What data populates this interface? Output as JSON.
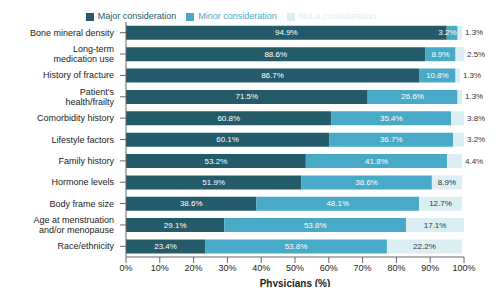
{
  "chart_data": {
    "type": "bar",
    "orientation": "horizontal",
    "stacked": true,
    "data_labels": true,
    "grid": false,
    "legend": "top",
    "xlabel": "Physicians (%)",
    "categories": [
      "Bone mineral density",
      "Long-term medication use",
      "History of fracture",
      "Patient's health/frailty",
      "Comorbidity history",
      "Lifestyle factors",
      "Family history",
      "Hormone levels",
      "Body frame size",
      "Age at menstruation and/or menopause",
      "Race/ethnicity"
    ],
    "series": [
      {
        "name": "Major consideration",
        "color": "#245b6b",
        "values": [
          94.9,
          88.6,
          86.7,
          71.5,
          60.8,
          60.1,
          53.2,
          51.9,
          38.6,
          29.1,
          23.4
        ],
        "value_labels": [
          "94.9%",
          "88.6%",
          "86.7%",
          "71.5%",
          "60.8%",
          "60.1%",
          "53.2%",
          "51.9%",
          "38.6%",
          "29.1%",
          "23.4%"
        ]
      },
      {
        "name": "Minor consideration",
        "color": "#48aac6",
        "values": [
          3.2,
          8.9,
          10.8,
          26.6,
          35.4,
          36.7,
          41.8,
          38.6,
          48.1,
          53.8,
          53.8
        ],
        "value_labels": [
          "3.2%",
          "8.9%",
          "10.8%",
          "26.6%",
          "35.4%",
          "36.7%",
          "41.8%",
          "38.6%",
          "48.1%",
          "53.8%",
          "53.8%"
        ]
      },
      {
        "name": "Not a consideration",
        "color": "#dbeef4",
        "values": [
          1.3,
          2.5,
          1.3,
          1.3,
          3.8,
          3.2,
          4.4,
          8.9,
          12.7,
          17.1,
          22.2
        ],
        "value_labels": [
          "1.3%",
          "2.5%",
          "1.3%",
          "1.3%",
          "3.8%",
          "3.2%",
          "4.4%",
          "8.9%",
          "12.7%",
          "17.1%",
          "22.2%"
        ]
      }
    ],
    "xlim": [
      0,
      100
    ],
    "xticks": [
      {
        "value": 0,
        "label": "0%"
      },
      {
        "value": 10,
        "label": "10%"
      },
      {
        "value": 20,
        "label": "20%"
      },
      {
        "value": 30,
        "label": "30%"
      },
      {
        "value": 40,
        "label": "40%"
      },
      {
        "value": 50,
        "label": "50%"
      },
      {
        "value": 60,
        "label": "60%"
      },
      {
        "value": 70,
        "label": "70%"
      },
      {
        "value": 80,
        "label": "80%"
      },
      {
        "value": 90,
        "label": "90%"
      },
      {
        "value": 100,
        "label": "100%"
      }
    ]
  }
}
